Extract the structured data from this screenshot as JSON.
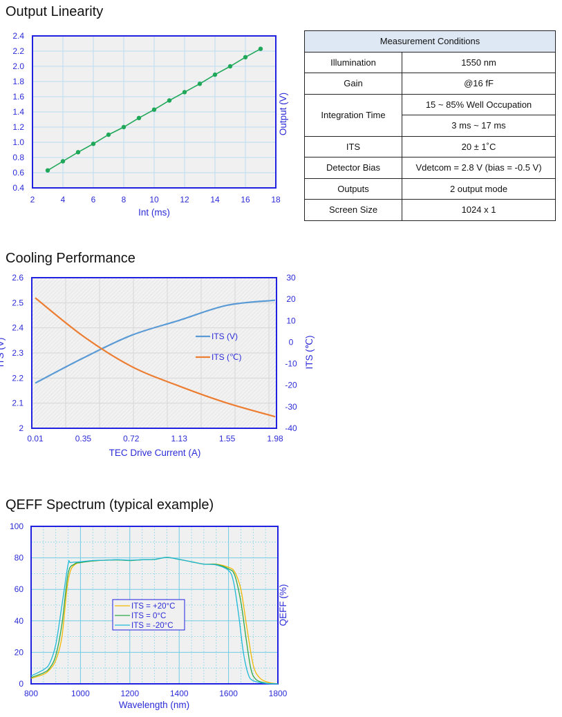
{
  "sections": {
    "linearity_title": "Output Linearity",
    "cooling_title": "Cooling Performance",
    "qeff_title": "QEFF Spectrum (typical example)"
  },
  "table": {
    "header": "Measurement Conditions",
    "illumination": {
      "label": "Illumination",
      "value": "1550 nm"
    },
    "gain": {
      "label": "Gain",
      "value": "@16 fF"
    },
    "integration": {
      "label": "Integration Time",
      "value1": "15 ~ 85% Well Occupation",
      "value2": "3 ms ~ 17 ms"
    },
    "its": {
      "label": "ITS",
      "value": "20 ± 1˚C"
    },
    "bias": {
      "label": "Detector Bias",
      "value": "Vdetcom = 2.8 V (bias = -0.5 V)"
    },
    "outputs": {
      "label": "Outputs",
      "value": "2 output mode"
    },
    "screen": {
      "label": "Screen Size",
      "value": "1024 x 1"
    }
  },
  "colors": {
    "axis": "#2020e0",
    "label": "#2b2bd9",
    "plot_bg": "#f0f0f0",
    "linearity_series": "#1fa85a",
    "its_v": "#5b9bd5",
    "its_c": "#ed7d31",
    "qeff_p20": "#f2b800",
    "qeff_0": "#2ca84a",
    "qeff_m20": "#1fb8d8"
  },
  "chart_data": [
    {
      "type": "line",
      "title": "Output Linearity",
      "xlabel": "Int (ms)",
      "ylabel": "Output (V)",
      "xlim": [
        2,
        18
      ],
      "ylim": [
        0.4,
        2.4
      ],
      "grid": true,
      "xticks": [
        "2",
        "4",
        "6",
        "8",
        "10",
        "12",
        "14",
        "16",
        "18"
      ],
      "yticks": [
        "0.4",
        "0.6",
        "0.8",
        "1.0",
        "1.2",
        "1.4",
        "1.6",
        "1.8",
        "2.0",
        "2.2",
        "2.4"
      ],
      "x": [
        3,
        4,
        5,
        6,
        7,
        8,
        9,
        10,
        11,
        12,
        13,
        14,
        15,
        16,
        17
      ],
      "y": [
        0.63,
        0.75,
        0.87,
        0.98,
        1.1,
        1.2,
        1.32,
        1.43,
        1.55,
        1.66,
        1.77,
        1.89,
        2.0,
        2.12,
        2.23
      ]
    },
    {
      "type": "line",
      "title": "Cooling Performance",
      "xlabel": "TEC Drive Current (A)",
      "ylabel_left": "ITS (V)",
      "ylabel_right": "ITS (℃)",
      "categories": [
        "0.01",
        "0.35",
        "0.72",
        "1.13",
        "1.55",
        "1.98"
      ],
      "ylim_left": [
        2,
        2.6
      ],
      "ylim_right": [
        -40,
        30
      ],
      "yticks_left": [
        "2",
        "2.1",
        "2.2",
        "2.3",
        "2.4",
        "2.5",
        "2.6"
      ],
      "yticks_right": [
        "-40",
        "-30",
        "-20",
        "-10",
        "0",
        "10",
        "20",
        "30"
      ],
      "grid": true,
      "legend": "center-right",
      "series": [
        {
          "name": "ITS (V)",
          "axis": "left",
          "values": [
            2.18,
            2.28,
            2.37,
            2.43,
            2.49,
            2.51
          ]
        },
        {
          "name": "ITS (℃)",
          "axis": "right",
          "values": [
            20.6,
            2.8,
            -11.2,
            -20.4,
            -28.3,
            -34.6
          ]
        }
      ]
    },
    {
      "type": "line",
      "title": "QEFF Spectrum (typical example)",
      "xlabel": "Wavelength (nm)",
      "ylabel": "QEFF (%)",
      "xlim": [
        800,
        1800
      ],
      "ylim": [
        0,
        100
      ],
      "xticks": [
        "800",
        "1000",
        "1200",
        "1400",
        "1600",
        "1800"
      ],
      "yticks": [
        "0",
        "20",
        "40",
        "60",
        "80",
        "100"
      ],
      "grid": true,
      "legend": "center",
      "series": [
        {
          "name": "ITS = +20°C",
          "x": [
            800,
            850,
            875,
            900,
            925,
            945,
            960,
            980,
            1000,
            1050,
            1100,
            1150,
            1200,
            1250,
            1300,
            1350,
            1400,
            1450,
            1500,
            1550,
            1600,
            1625,
            1650,
            1675,
            1700,
            1725,
            1760,
            1800
          ],
          "y": [
            3.5,
            6,
            9,
            15,
            30,
            60,
            72,
            76,
            77,
            78,
            78.5,
            78.7,
            78.3,
            78.8,
            79,
            80.3,
            79,
            77.5,
            76,
            76,
            74,
            71,
            60,
            35,
            12,
            4,
            1,
            0
          ]
        },
        {
          "name": "ITS = 0°C",
          "x": [
            800,
            850,
            875,
            900,
            925,
            950,
            975,
            1000,
            1050,
            1100,
            1150,
            1200,
            1250,
            1300,
            1350,
            1400,
            1450,
            1500,
            1550,
            1600,
            1625,
            1650,
            1670,
            1690,
            1710,
            1750,
            1800
          ],
          "y": [
            4,
            7,
            10,
            18,
            38,
            70,
            76,
            77,
            78,
            78.5,
            78.7,
            78.3,
            78.8,
            79,
            80.3,
            79,
            77.5,
            76,
            75.8,
            73,
            69,
            52,
            30,
            10,
            3,
            0.5,
            0
          ]
        },
        {
          "name": "ITS = -20°C",
          "x": [
            800,
            850,
            875,
            900,
            925,
            950,
            960,
            1000,
            1050,
            1100,
            1150,
            1200,
            1250,
            1300,
            1350,
            1400,
            1450,
            1500,
            1550,
            1600,
            1620,
            1640,
            1660,
            1680,
            1700,
            1750,
            1800
          ],
          "y": [
            5,
            9,
            13,
            25,
            50,
            76,
            77,
            77.5,
            78.3,
            78.5,
            78.8,
            78.5,
            78.8,
            79,
            80.3,
            79,
            77.5,
            76,
            75.5,
            72,
            65,
            45,
            20,
            6,
            2,
            0.3,
            0
          ]
        }
      ]
    }
  ]
}
